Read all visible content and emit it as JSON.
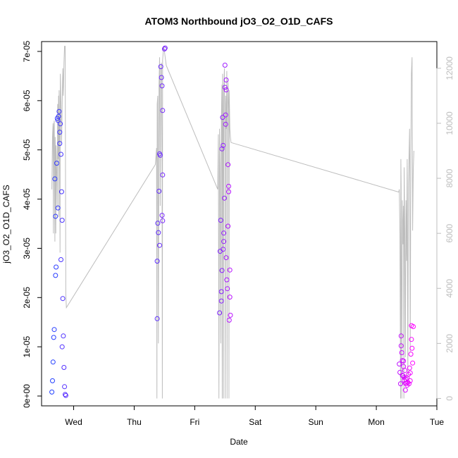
{
  "chart_data": {
    "type": "scatter",
    "title": "ATOM3 Northbound jO3_O2_O1D_CAFS",
    "xlabel": "Date",
    "ylabel": "jO3_O2_O1D_CAFS",
    "x_unit": "days since Tue 00:00 (Wed=1 ... Tue=7)",
    "x_ticks": [
      {
        "label": "Wed",
        "value": 1
      },
      {
        "label": "Thu",
        "value": 2
      },
      {
        "label": "Fri",
        "value": 3
      },
      {
        "label": "Sat",
        "value": 4
      },
      {
        "label": "Sun",
        "value": 5
      },
      {
        "label": "Mon",
        "value": 6
      },
      {
        "label": "Tue",
        "value": 7
      }
    ],
    "xlim": [
      0.47,
      7.0
    ],
    "ylim": [
      -2e-06,
      7.2e-05
    ],
    "y_ticks": [
      {
        "label": "0e+00",
        "value": 0
      },
      {
        "label": "1e-05",
        "value": 1e-05
      },
      {
        "label": "2e-05",
        "value": 2e-05
      },
      {
        "label": "3e-05",
        "value": 3e-05
      },
      {
        "label": "4e-05",
        "value": 4e-05
      },
      {
        "label": "5e-05",
        "value": 5e-05
      },
      {
        "label": "6e-05",
        "value": 6e-05
      },
      {
        "label": "7e-05",
        "value": 7e-05
      }
    ],
    "alt_axis": {
      "color": "#bdbdbd",
      "ylim": [
        -270,
        12970
      ],
      "ticks": [
        {
          "label": "0",
          "value": 0
        },
        {
          "label": "2000",
          "value": 2000
        },
        {
          "label": "4000",
          "value": 4000
        },
        {
          "label": "6000",
          "value": 6000
        },
        {
          "label": "8000",
          "value": 8000
        },
        {
          "label": "10000",
          "value": 10000
        },
        {
          "label": "12000",
          "value": 12000
        }
      ]
    },
    "color_start": "#1f3fff",
    "color_end": "#ff00ff",
    "points": [
      [
        0.64,
        8e-07
      ],
      [
        0.65,
        3.1e-06
      ],
      [
        0.66,
        6.9e-06
      ],
      [
        0.67,
        1.19e-05
      ],
      [
        0.68,
        1.35e-05
      ],
      [
        0.7,
        2.45e-05
      ],
      [
        0.71,
        2.62e-05
      ],
      [
        0.69,
        4.41e-05
      ],
      [
        0.7,
        3.65e-05
      ],
      [
        0.72,
        4.73e-05
      ],
      [
        0.74,
        3.82e-05
      ],
      [
        0.73,
        5.64e-05
      ],
      [
        0.75,
        5.68e-05
      ],
      [
        0.74,
        5.6e-05
      ],
      [
        0.76,
        5.78e-05
      ],
      [
        0.77,
        5.36e-05
      ],
      [
        0.77,
        5.13e-05
      ],
      [
        0.78,
        5.53e-05
      ],
      [
        0.79,
        4.91e-05
      ],
      [
        0.8,
        4.15e-05
      ],
      [
        0.79,
        2.77e-05
      ],
      [
        0.81,
        3.57e-05
      ],
      [
        0.82,
        1.98e-05
      ],
      [
        0.83,
        1.22e-05
      ],
      [
        0.81,
        1e-05
      ],
      [
        0.84,
        5.8e-06
      ],
      [
        0.85,
        1.9e-06
      ],
      [
        0.86,
        3e-07
      ],
      [
        0.87,
        1e-07
      ],
      [
        2.38,
        1.57e-05
      ],
      [
        2.38,
        2.74e-05
      ],
      [
        2.39,
        3.51e-05
      ],
      [
        2.4,
        3.32e-05
      ],
      [
        2.41,
        4.16e-05
      ],
      [
        2.42,
        3.06e-05
      ],
      [
        2.42,
        4.92e-05
      ],
      [
        2.43,
        4.89e-05
      ],
      [
        2.44,
        6.69e-05
      ],
      [
        2.45,
        6.47e-05
      ],
      [
        2.46,
        6.3e-05
      ],
      [
        2.47,
        5.8e-05
      ],
      [
        2.47,
        4.49e-05
      ],
      [
        2.46,
        3.67e-05
      ],
      [
        2.47,
        3.56e-05
      ],
      [
        2.5,
        7.05e-05
      ],
      [
        2.51,
        7.07e-05
      ],
      [
        3.41,
        1.69e-05
      ],
      [
        3.42,
        2.94e-05
      ],
      [
        3.43,
        3.57e-05
      ],
      [
        3.44,
        2.12e-05
      ],
      [
        3.44,
        1.93e-05
      ],
      [
        3.45,
        2.55e-05
      ],
      [
        3.45,
        5.02e-05
      ],
      [
        3.46,
        5.66e-05
      ],
      [
        3.47,
        5.09e-05
      ],
      [
        3.47,
        2.98e-05
      ],
      [
        3.48,
        3.31e-05
      ],
      [
        3.48,
        3.14e-05
      ],
      [
        3.49,
        4.02e-05
      ],
      [
        3.5,
        6.27e-05
      ],
      [
        3.5,
        6.72e-05
      ],
      [
        3.51,
        5.52e-05
      ],
      [
        3.51,
        5.71e-05
      ],
      [
        3.52,
        6.42e-05
      ],
      [
        3.52,
        6.22e-05
      ],
      [
        3.52,
        2.81e-05
      ],
      [
        3.53,
        2.36e-05
      ],
      [
        3.54,
        2.18e-05
      ],
      [
        3.55,
        4.7e-05
      ],
      [
        3.55,
        3.45e-05
      ],
      [
        3.56,
        4.26e-05
      ],
      [
        3.56,
        4.15e-05
      ],
      [
        3.57,
        1.54e-05
      ],
      [
        3.58,
        2.56e-05
      ],
      [
        3.58,
        2.01e-05
      ],
      [
        3.59,
        1.64e-05
      ],
      [
        6.38,
        6.5e-06
      ],
      [
        6.39,
        4.8e-06
      ],
      [
        6.4,
        2.5e-06
      ],
      [
        6.41,
        1.02e-05
      ],
      [
        6.41,
        1.22e-05
      ],
      [
        6.42,
        8.8e-06
      ],
      [
        6.43,
        4.2e-06
      ],
      [
        6.43,
        7.2e-06
      ],
      [
        6.44,
        4.1e-06
      ],
      [
        6.45,
        6e-06
      ],
      [
        6.45,
        7.1e-06
      ],
      [
        6.46,
        3.2e-06
      ],
      [
        6.46,
        3.8e-06
      ],
      [
        6.47,
        5.2e-06
      ],
      [
        6.48,
        1.2e-06
      ],
      [
        6.48,
        2.6e-06
      ],
      [
        6.49,
        3.4e-06
      ],
      [
        6.5,
        2.6e-06
      ],
      [
        6.51,
        3.7e-06
      ],
      [
        6.51,
        2.2e-06
      ],
      [
        6.52,
        2.8e-06
      ],
      [
        6.53,
        4.4e-06
      ],
      [
        6.54,
        2.5e-06
      ],
      [
        6.55,
        5.7e-06
      ],
      [
        6.56,
        4.7e-06
      ],
      [
        6.56,
        3.1e-06
      ],
      [
        6.57,
        8.5e-06
      ],
      [
        6.58,
        1.15e-05
      ],
      [
        6.58,
        1.43e-05
      ],
      [
        6.59,
        9.7e-06
      ],
      [
        6.6,
        6.7e-06
      ],
      [
        6.61,
        1.41e-05
      ]
    ],
    "alt_line": [
      [
        0.64,
        7600
      ],
      [
        0.65,
        9500
      ],
      [
        0.66,
        10000
      ],
      [
        0.665,
        6000
      ],
      [
        0.67,
        9800
      ],
      [
        0.68,
        10100
      ],
      [
        0.69,
        5700
      ],
      [
        0.695,
        9500
      ],
      [
        0.7,
        8500
      ],
      [
        0.705,
        6000
      ],
      [
        0.71,
        9200
      ],
      [
        0.72,
        8200
      ],
      [
        0.73,
        6900
      ],
      [
        0.735,
        10700
      ],
      [
        0.74,
        8700
      ],
      [
        0.75,
        11000
      ],
      [
        0.755,
        6600
      ],
      [
        0.76,
        11200
      ],
      [
        0.77,
        9400
      ],
      [
        0.775,
        5300
      ],
      [
        0.78,
        11800
      ],
      [
        0.79,
        10800
      ],
      [
        0.8,
        9300
      ],
      [
        0.81,
        10600
      ],
      [
        0.82,
        12000
      ],
      [
        0.83,
        11000
      ],
      [
        0.84,
        12200
      ],
      [
        0.85,
        12800
      ],
      [
        0.86,
        12800
      ],
      [
        0.87,
        3800
      ],
      [
        0.88,
        3300
      ],
      [
        2.35,
        8500
      ],
      [
        2.37,
        9100
      ],
      [
        2.375,
        0
      ],
      [
        2.38,
        10700
      ],
      [
        2.39,
        11000
      ],
      [
        2.4,
        2000
      ],
      [
        2.41,
        11400
      ],
      [
        2.42,
        12400
      ],
      [
        2.43,
        7000
      ],
      [
        2.44,
        12000
      ],
      [
        2.45,
        12200
      ],
      [
        2.46,
        8000
      ],
      [
        2.465,
        0
      ],
      [
        2.47,
        12300
      ],
      [
        2.48,
        12600
      ],
      [
        2.49,
        12800
      ],
      [
        2.5,
        12600
      ],
      [
        2.53,
        12100
      ],
      [
        3.38,
        7600
      ],
      [
        3.39,
        9600
      ],
      [
        3.4,
        0
      ],
      [
        3.41,
        9800
      ],
      [
        3.42,
        8400
      ],
      [
        3.43,
        2000
      ],
      [
        3.44,
        10200
      ],
      [
        3.45,
        11400
      ],
      [
        3.455,
        0
      ],
      [
        3.46,
        11800
      ],
      [
        3.47,
        9300
      ],
      [
        3.475,
        0
      ],
      [
        3.48,
        11200
      ],
      [
        3.49,
        12000
      ],
      [
        3.5,
        8800
      ],
      [
        3.505,
        0
      ],
      [
        3.51,
        11000
      ],
      [
        3.52,
        9800
      ],
      [
        3.53,
        11900
      ],
      [
        3.535,
        0
      ],
      [
        3.54,
        9600
      ],
      [
        3.55,
        11500
      ],
      [
        3.56,
        10500
      ],
      [
        3.565,
        0
      ],
      [
        3.57,
        11200
      ],
      [
        3.58,
        9800
      ],
      [
        3.59,
        9500
      ],
      [
        3.6,
        9300
      ],
      [
        6.37,
        7500
      ],
      [
        6.38,
        7600
      ],
      [
        6.39,
        6000
      ],
      [
        6.4,
        0
      ],
      [
        6.405,
        8700
      ],
      [
        6.41,
        7700
      ],
      [
        6.42,
        0
      ],
      [
        6.43,
        7200
      ],
      [
        6.44,
        5600
      ],
      [
        6.45,
        7000
      ],
      [
        6.455,
        0
      ],
      [
        6.46,
        8400
      ],
      [
        6.47,
        6000
      ],
      [
        6.48,
        1500
      ],
      [
        6.49,
        7200
      ],
      [
        6.5,
        5000
      ],
      [
        6.51,
        8700
      ],
      [
        6.52,
        600
      ],
      [
        6.53,
        7800
      ],
      [
        6.54,
        8800
      ],
      [
        6.55,
        9800
      ],
      [
        6.56,
        1700
      ],
      [
        6.57,
        8800
      ],
      [
        6.58,
        11800
      ],
      [
        6.59,
        12400
      ],
      [
        6.6,
        6100
      ],
      [
        6.61,
        8300
      ],
      [
        6.62,
        9000
      ]
    ]
  }
}
